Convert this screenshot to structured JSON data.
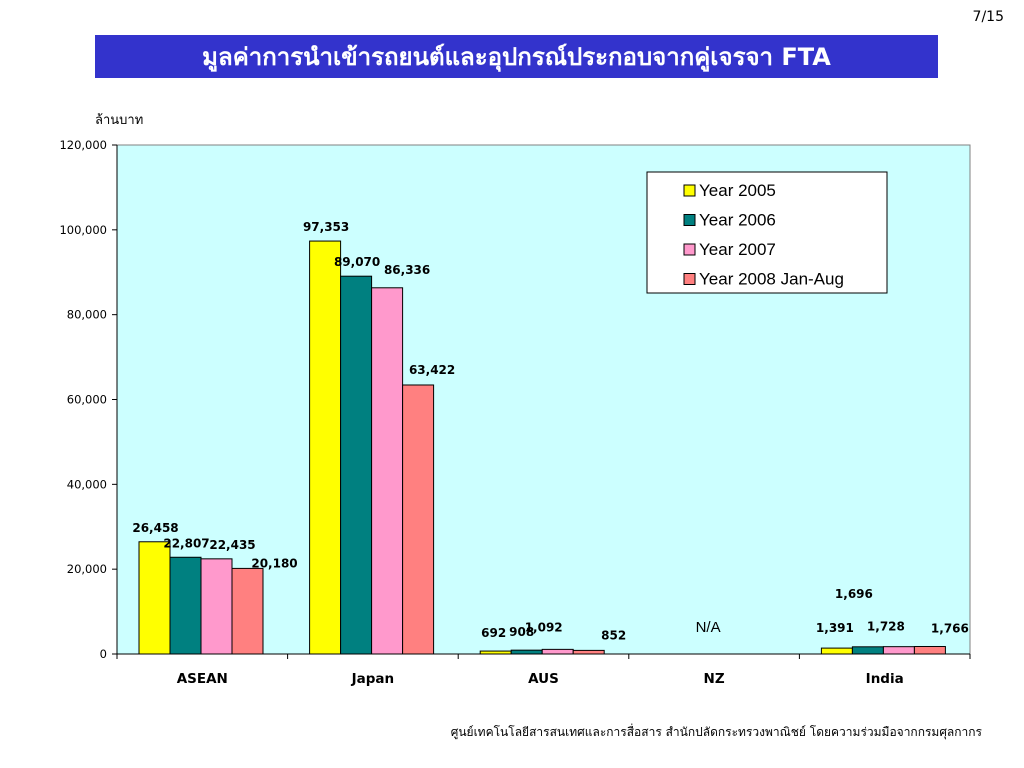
{
  "page_number": "7/15",
  "slide_title": "มูลค่าการนำเข้ารถยนต์และอุปกรณ์ประกอบจากคู่เจรจา FTA",
  "footer_text": "ศูนย์เทคโนโลยีสารสนเทศและการสื่อสาร สำนักปลัดกระทรวงพาณิชย์ โดยความร่วมมือจากกรมศุลกากร",
  "colors": {
    "title_bar": "#3333cc",
    "plot_background": "#ccffff",
    "series": [
      "#ffff00",
      "#008080",
      "#ff99cc",
      "#ff8080"
    ]
  },
  "chart_data": {
    "type": "bar",
    "title": "",
    "ylabel": "ล้านบาท",
    "xlabel": "",
    "ylim": [
      0,
      120000
    ],
    "yticks": [
      0,
      20000,
      40000,
      60000,
      80000,
      100000,
      120000
    ],
    "ytick_labels": [
      "0",
      "20,000",
      "40,000",
      "60,000",
      "80,000",
      "100,000",
      "120,000"
    ],
    "grid": false,
    "legend_position": "top-right",
    "categories": [
      "ASEAN",
      "Japan",
      "AUS",
      "NZ",
      "India"
    ],
    "series": [
      {
        "name": "Year 2005",
        "values": [
          26458,
          97353,
          692,
          null,
          1391
        ],
        "labels": [
          "26,458",
          "97,353",
          "692",
          "",
          "1,391"
        ]
      },
      {
        "name": "Year 2006",
        "values": [
          22807,
          89070,
          908,
          null,
          1696
        ],
        "labels": [
          "22,807",
          "89,070",
          "908",
          "",
          "1,696"
        ]
      },
      {
        "name": "Year 2007",
        "values": [
          22435,
          86336,
          1092,
          null,
          1728
        ],
        "labels": [
          "22,435",
          "86,336",
          "1,092",
          "",
          "1,728"
        ]
      },
      {
        "name": "Year 2008 Jan-Aug",
        "values": [
          20180,
          63422,
          852,
          null,
          1766
        ],
        "labels": [
          "20,180",
          "63,422",
          "852",
          "",
          "1,766"
        ]
      }
    ],
    "annotations": [
      {
        "category": "NZ",
        "text": "N/A"
      }
    ]
  }
}
